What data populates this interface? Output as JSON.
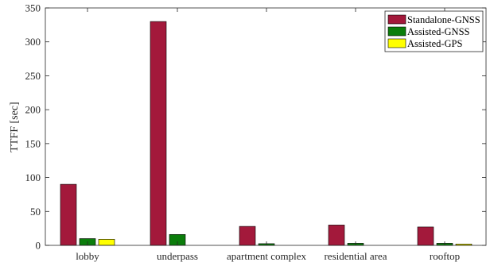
{
  "chart_data": {
    "type": "bar",
    "categories": [
      "lobby",
      "underpass",
      "apartment complex",
      "residential area",
      "rooftop"
    ],
    "series": [
      {
        "name": "Standalone-GNSS",
        "color": "#a3193b",
        "values": [
          90,
          330,
          28,
          30,
          27
        ]
      },
      {
        "name": "Assisted-GNSS",
        "color": "#0b7d0b",
        "values": [
          10,
          16,
          2.5,
          3,
          3
        ]
      },
      {
        "name": "Assisted-GPS",
        "color": "#ffff00",
        "values": [
          9,
          0,
          0,
          0,
          2
        ]
      }
    ],
    "ylabel": "TTFF [sec]",
    "xlabel": "",
    "ylim": [
      0,
      350
    ],
    "yticks": [
      0,
      50,
      100,
      150,
      200,
      250,
      300,
      350
    ],
    "legend_position": "top-right",
    "grid": false
  }
}
